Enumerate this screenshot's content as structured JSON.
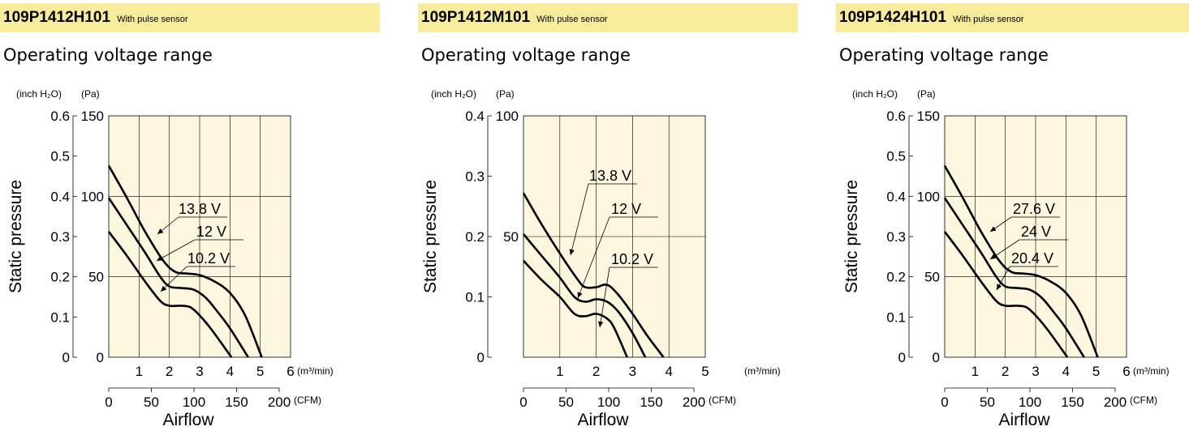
{
  "chart_data": [
    {
      "type": "line",
      "model": "109P1412H101",
      "model_note": "With pulse sensor",
      "title": "Operating voltage range",
      "xlabel": "Airflow",
      "ylabel": "Static pressure",
      "y_unit_inch": "(inch H₂O)",
      "y_unit_pa": "(Pa)",
      "x_unit_m3": "(m³/min)",
      "x_unit_cfm": "(CFM)",
      "xlim_m3": [
        0,
        6
      ],
      "xticks_m3": [
        "1",
        "2",
        "3",
        "4",
        "5",
        "6"
      ],
      "xticks_cfm": [
        "0",
        "50",
        "100",
        "150",
        "200"
      ],
      "ylim_pa": [
        0,
        150
      ],
      "yticks_pa": [
        "0",
        "50",
        "100",
        "150"
      ],
      "yticks_inch": [
        "0",
        "0.1",
        "0.2",
        "0.3",
        "0.4",
        "0.5",
        "0.6"
      ],
      "grid": true,
      "series": [
        {
          "name": "13.8 V",
          "x": [
            0,
            0.6,
            1.2,
            1.8,
            2.2,
            2.6,
            3.0,
            3.5,
            4.0,
            4.5,
            5.05
          ],
          "y": [
            119,
            99,
            78,
            60,
            53,
            52,
            51,
            47,
            40,
            26,
            0
          ]
        },
        {
          "name": "12 V",
          "x": [
            0,
            0.6,
            1.2,
            1.7,
            2.0,
            2.4,
            2.8,
            3.2,
            3.6,
            4.0,
            4.6
          ],
          "y": [
            99,
            82,
            65,
            50,
            44,
            43,
            42,
            37,
            28,
            18,
            0
          ]
        },
        {
          "name": "10.2 V",
          "x": [
            0,
            0.6,
            1.2,
            1.7,
            2.0,
            2.4,
            2.7,
            3.0,
            3.4,
            4.05
          ],
          "y": [
            78,
            63,
            47,
            35,
            32,
            32,
            31,
            26,
            17,
            0
          ]
        }
      ]
    },
    {
      "type": "line",
      "model": "109P1412M101",
      "model_note": "With pulse sensor",
      "title": "Operating voltage range",
      "xlabel": "Airflow",
      "ylabel": "Static pressure",
      "y_unit_inch": "(inch H₂O)",
      "y_unit_pa": "(Pa)",
      "x_unit_m3": "(m³/min)",
      "x_unit_cfm": "(CFM)",
      "xlim_m3": [
        0,
        5
      ],
      "xticks_m3": [
        "1",
        "2",
        "3",
        "4",
        "5"
      ],
      "xticks_cfm": [
        "0",
        "50",
        "100",
        "150",
        "200"
      ],
      "ylim_pa": [
        0,
        100
      ],
      "yticks_pa": [
        "50",
        "100"
      ],
      "yticks_inch": [
        "0",
        "0.1",
        "0.2",
        "0.3",
        "0.4"
      ],
      "grid": true,
      "series": [
        {
          "name": "13.8 V",
          "x": [
            0,
            0.5,
            1.0,
            1.5,
            1.7,
            2.0,
            2.3,
            2.6,
            3.0,
            3.4,
            3.85
          ],
          "y": [
            68,
            55,
            43,
            32,
            29,
            29,
            30,
            26,
            18,
            9,
            0
          ]
        },
        {
          "name": "12 V",
          "x": [
            0,
            0.5,
            1.0,
            1.4,
            1.7,
            2.0,
            2.3,
            2.6,
            3.0,
            3.35
          ],
          "y": [
            51,
            42,
            33,
            25,
            23,
            24,
            23,
            19,
            10,
            0
          ]
        },
        {
          "name": "10.2 V",
          "x": [
            0,
            0.5,
            1.0,
            1.4,
            1.7,
            2.0,
            2.3,
            2.5,
            2.85
          ],
          "y": [
            40,
            32,
            25,
            18,
            17,
            18,
            16,
            12,
            0
          ]
        }
      ]
    },
    {
      "type": "line",
      "model": "109P1424H101",
      "model_note": "With pulse sensor",
      "title": "Operating voltage range",
      "xlabel": "Airflow",
      "ylabel": "Static pressure",
      "y_unit_inch": "(inch H₂O)",
      "y_unit_pa": "(Pa)",
      "x_unit_m3": "(m³/min)",
      "x_unit_cfm": "(CFM)",
      "xlim_m3": [
        0,
        6
      ],
      "xticks_m3": [
        "1",
        "2",
        "3",
        "4",
        "5",
        "6"
      ],
      "xticks_cfm": [
        "0",
        "50",
        "100",
        "150",
        "200"
      ],
      "ylim_pa": [
        0,
        150
      ],
      "yticks_pa": [
        "0",
        "50",
        "100",
        "150"
      ],
      "yticks_inch": [
        "0",
        "0.1",
        "0.2",
        "0.3",
        "0.4",
        "0.5",
        "0.6"
      ],
      "grid": true,
      "series": [
        {
          "name": "27.6 V",
          "x": [
            0,
            0.6,
            1.2,
            1.8,
            2.2,
            2.6,
            3.0,
            3.5,
            4.0,
            4.5,
            5.05
          ],
          "y": [
            119,
            99,
            78,
            60,
            53,
            52,
            51,
            47,
            40,
            26,
            0
          ]
        },
        {
          "name": "24 V",
          "x": [
            0,
            0.6,
            1.2,
            1.7,
            2.0,
            2.4,
            2.8,
            3.2,
            3.6,
            4.0,
            4.6
          ],
          "y": [
            99,
            82,
            65,
            50,
            44,
            43,
            42,
            37,
            28,
            18,
            0
          ]
        },
        {
          "name": "20.4 V",
          "x": [
            0,
            0.6,
            1.2,
            1.7,
            2.0,
            2.4,
            2.7,
            3.0,
            3.4,
            4.05
          ],
          "y": [
            78,
            63,
            47,
            35,
            32,
            32,
            31,
            26,
            17,
            0
          ]
        }
      ]
    }
  ]
}
